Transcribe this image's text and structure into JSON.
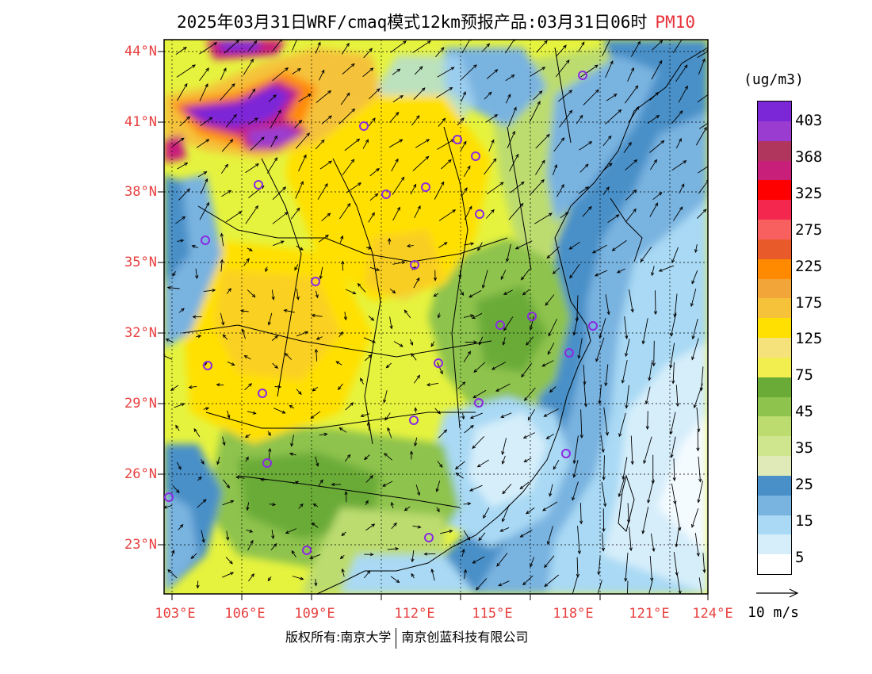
{
  "title": {
    "text": "2025年03月31日WRF/cmaq模式12km预报产品:03月31日06时",
    "species": "PM10",
    "species_color": "#e8303a"
  },
  "axis_label_color": "#e84040",
  "lat_labels": [
    "44°N",
    "41°N",
    "38°N",
    "35°N",
    "32°N",
    "29°N",
    "26°N",
    "23°N"
  ],
  "lon_labels": [
    "103°E",
    "106°E",
    "109°E",
    "112°E",
    "115°E",
    "118°E",
    "121°E",
    "124°E"
  ],
  "legend": {
    "unit": "(ug/m3)",
    "labels": [
      "403",
      "368",
      "325",
      "275",
      "225",
      "175",
      "125",
      "75",
      "45",
      "35",
      "25",
      "15",
      "5"
    ],
    "colors": [
      "#7b27d8",
      "#9a3cd0",
      "#b0365e",
      "#c81f7a",
      "#ff0000",
      "#f4284e",
      "#f86060",
      "#e85a2a",
      "#ff8a00",
      "#f2a63a",
      "#f5c23a",
      "#ffe000",
      "#f5e27a",
      "#f2ee50",
      "#6aab38",
      "#8ec34e",
      "#bcdc70",
      "#cfe58e",
      "#dfeab8",
      "#4990c8",
      "#79b3e0",
      "#a9d9f4",
      "#d6eefa",
      "#ffffff"
    ]
  },
  "wind_reference": {
    "label": "10 m/s"
  },
  "credit": {
    "left": "版权所有:南京大学",
    "right": "南京创蓝科技有限公司"
  }
}
